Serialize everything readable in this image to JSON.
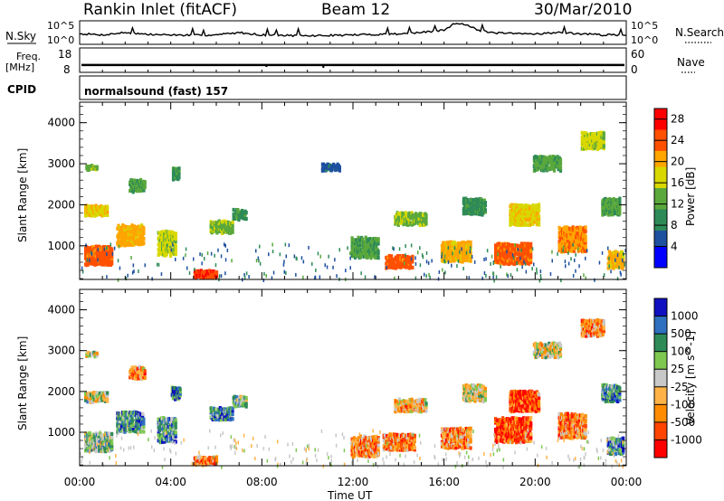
{
  "header": {
    "title": "Rankin Inlet (fitACF)",
    "beam": "Beam 12",
    "date": "30/Mar/2010"
  },
  "side_labels": {
    "nsky": "N.Sky",
    "nsearch": "N.Search",
    "freq_top": "Freq.",
    "freq_unit": "[MHz]",
    "nave": "Nave",
    "cpid": "CPID"
  },
  "mode_text": "normalsound (fast) 157",
  "colors": {
    "power_scale": [
      "#0000ff",
      "#1e50a0",
      "#2e8b57",
      "#5aa83c",
      "#d8d800",
      "#ffa500",
      "#ff5000",
      "#ff0000"
    ],
    "velocity_scale": [
      "#ff0000",
      "#ff4500",
      "#ff8c00",
      "#ffb347",
      "#c8c8c8",
      "#7ec850",
      "#2e8b57",
      "#3070c0",
      "#1010c0"
    ]
  },
  "chart_data": [
    {
      "type": "line",
      "title": "",
      "left_axis": {
        "label": "N.Sky",
        "ticks": [
          "10^5",
          "10^0"
        ]
      },
      "right_axis": {
        "label": "N.Search",
        "ticks": [
          "10^5",
          "10^0"
        ]
      },
      "x_range_hours": [
        0,
        24
      ],
      "series": [
        {
          "values_hours": [
            0,
            1,
            2,
            3,
            4,
            5,
            6,
            7,
            8,
            9,
            10,
            11,
            12,
            13,
            14,
            15,
            16,
            16.5,
            17,
            17.5,
            18,
            19,
            20,
            21,
            22,
            23,
            24
          ],
          "values_level": [
            0.45,
            0.4,
            0.5,
            0.42,
            0.4,
            0.38,
            0.4,
            0.5,
            0.4,
            0.38,
            0.36,
            0.38,
            0.4,
            0.42,
            0.45,
            0.5,
            0.6,
            0.9,
            0.85,
            0.6,
            0.5,
            0.45,
            0.45,
            0.5,
            0.45,
            0.4,
            0.4
          ]
        }
      ]
    },
    {
      "type": "scatter",
      "left_axis": {
        "label_top": "Freq.",
        "label_unit": "[MHz]",
        "ticks": [
          18,
          8
        ]
      },
      "right_axis": {
        "label": "Nave",
        "ticks": [
          60,
          0
        ]
      },
      "series": [
        {
          "name": "Freq.",
          "value": 11
        },
        {
          "name": "Nave",
          "value": 38
        }
      ]
    },
    {
      "type": "heatmap",
      "xlabel": "",
      "ylabel": "Slant Range [km]",
      "yticks": [
        1000,
        2000,
        3000,
        4000
      ],
      "ylim": [
        180,
        4500
      ],
      "xlim_hours": [
        0,
        24
      ],
      "colorbar": {
        "label": "Power [dB]",
        "ticks": [
          4,
          8,
          12,
          16,
          20,
          24,
          28
        ],
        "range": [
          0,
          30
        ]
      },
      "blobs": [
        {
          "t": 0.8,
          "r": 800,
          "dt": 1.2,
          "dr": 450,
          "v": 24
        },
        {
          "t": 0.7,
          "r": 1900,
          "dt": 1.0,
          "dr": 250,
          "v": 18
        },
        {
          "t": 0.5,
          "r": 2950,
          "dt": 0.5,
          "dr": 120,
          "v": 14
        },
        {
          "t": 2.2,
          "r": 1300,
          "dt": 1.2,
          "dr": 500,
          "v": 20
        },
        {
          "t": 2.5,
          "r": 2500,
          "dt": 0.7,
          "dr": 300,
          "v": 12
        },
        {
          "t": 3.8,
          "r": 1100,
          "dt": 0.8,
          "dr": 600,
          "v": 16
        },
        {
          "t": 4.2,
          "r": 2800,
          "dt": 0.3,
          "dr": 300,
          "v": 10
        },
        {
          "t": 5.5,
          "r": 350,
          "dt": 1.0,
          "dr": 200,
          "v": 26
        },
        {
          "t": 6.2,
          "r": 1500,
          "dt": 1.0,
          "dr": 300,
          "v": 14
        },
        {
          "t": 7.0,
          "r": 1800,
          "dt": 0.6,
          "dr": 250,
          "v": 10
        },
        {
          "t": 11.0,
          "r": 2950,
          "dt": 0.8,
          "dr": 150,
          "v": 6
        },
        {
          "t": 12.5,
          "r": 1000,
          "dt": 1.2,
          "dr": 500,
          "v": 12
        },
        {
          "t": 14.0,
          "r": 650,
          "dt": 1.2,
          "dr": 300,
          "v": 24
        },
        {
          "t": 14.5,
          "r": 1700,
          "dt": 1.4,
          "dr": 300,
          "v": 14
        },
        {
          "t": 16.5,
          "r": 900,
          "dt": 1.3,
          "dr": 500,
          "v": 20
        },
        {
          "t": 17.3,
          "r": 2000,
          "dt": 1.0,
          "dr": 400,
          "v": 10
        },
        {
          "t": 19.0,
          "r": 850,
          "dt": 1.6,
          "dr": 500,
          "v": 24
        },
        {
          "t": 19.5,
          "r": 1800,
          "dt": 1.3,
          "dr": 500,
          "v": 18
        },
        {
          "t": 20.5,
          "r": 3050,
          "dt": 1.2,
          "dr": 350,
          "v": 12
        },
        {
          "t": 21.6,
          "r": 1200,
          "dt": 1.2,
          "dr": 600,
          "v": 22
        },
        {
          "t": 22.5,
          "r": 3600,
          "dt": 1.0,
          "dr": 400,
          "v": 16
        },
        {
          "t": 23.3,
          "r": 2000,
          "dt": 0.8,
          "dr": 400,
          "v": 12
        },
        {
          "t": 23.5,
          "r": 700,
          "dt": 0.7,
          "dr": 400,
          "v": 20
        }
      ]
    },
    {
      "type": "heatmap",
      "xlabel": "Time UT",
      "ylabel": "Slant Range [km]",
      "xticks": [
        "00:00",
        "04:00",
        "08:00",
        "12:00",
        "16:00",
        "20:00",
        "00:00"
      ],
      "yticks": [
        1000,
        2000,
        3000,
        4000
      ],
      "ylim": [
        180,
        4500
      ],
      "xlim_hours": [
        0,
        24
      ],
      "colorbar": {
        "label": "Velocity [m s^-1]",
        "ticks": [
          1000,
          500,
          100,
          25,
          -25,
          -100,
          -500,
          -1000
        ]
      },
      "blobs": [
        {
          "t": 0.8,
          "r": 800,
          "dt": 1.2,
          "dr": 450,
          "v": 5
        },
        {
          "t": 0.7,
          "r": 1900,
          "dt": 1.0,
          "dr": 250,
          "v": 4
        },
        {
          "t": 0.5,
          "r": 2950,
          "dt": 0.5,
          "dr": 120,
          "v": 4
        },
        {
          "t": 2.2,
          "r": 1300,
          "dt": 1.2,
          "dr": 500,
          "v": 6
        },
        {
          "t": 2.5,
          "r": 2500,
          "dt": 0.7,
          "dr": 300,
          "v": 2
        },
        {
          "t": 3.8,
          "r": 1100,
          "dt": 0.8,
          "dr": 600,
          "v": 6
        },
        {
          "t": 4.2,
          "r": 2000,
          "dt": 0.4,
          "dr": 300,
          "v": 7
        },
        {
          "t": 5.5,
          "r": 350,
          "dt": 1.0,
          "dr": 200,
          "v": 2
        },
        {
          "t": 6.2,
          "r": 1500,
          "dt": 1.0,
          "dr": 300,
          "v": 6
        },
        {
          "t": 7.0,
          "r": 1800,
          "dt": 0.6,
          "dr": 250,
          "v": 5
        },
        {
          "t": 12.5,
          "r": 700,
          "dt": 1.2,
          "dr": 500,
          "v": 2
        },
        {
          "t": 14.0,
          "r": 800,
          "dt": 1.4,
          "dr": 400,
          "v": 2
        },
        {
          "t": 14.5,
          "r": 1700,
          "dt": 1.4,
          "dr": 300,
          "v": 3
        },
        {
          "t": 16.5,
          "r": 900,
          "dt": 1.3,
          "dr": 500,
          "v": 2
        },
        {
          "t": 17.3,
          "r": 2000,
          "dt": 1.0,
          "dr": 400,
          "v": 4
        },
        {
          "t": 19.0,
          "r": 1100,
          "dt": 1.6,
          "dr": 600,
          "v": 1
        },
        {
          "t": 19.5,
          "r": 1800,
          "dt": 1.3,
          "dr": 500,
          "v": 1
        },
        {
          "t": 20.5,
          "r": 3050,
          "dt": 1.2,
          "dr": 350,
          "v": 4
        },
        {
          "t": 21.6,
          "r": 1200,
          "dt": 1.2,
          "dr": 600,
          "v": 2
        },
        {
          "t": 22.5,
          "r": 3600,
          "dt": 1.0,
          "dr": 400,
          "v": 2
        },
        {
          "t": 23.3,
          "r": 2000,
          "dt": 0.8,
          "dr": 400,
          "v": 6
        },
        {
          "t": 23.5,
          "r": 700,
          "dt": 0.7,
          "dr": 400,
          "v": 6
        }
      ]
    }
  ]
}
